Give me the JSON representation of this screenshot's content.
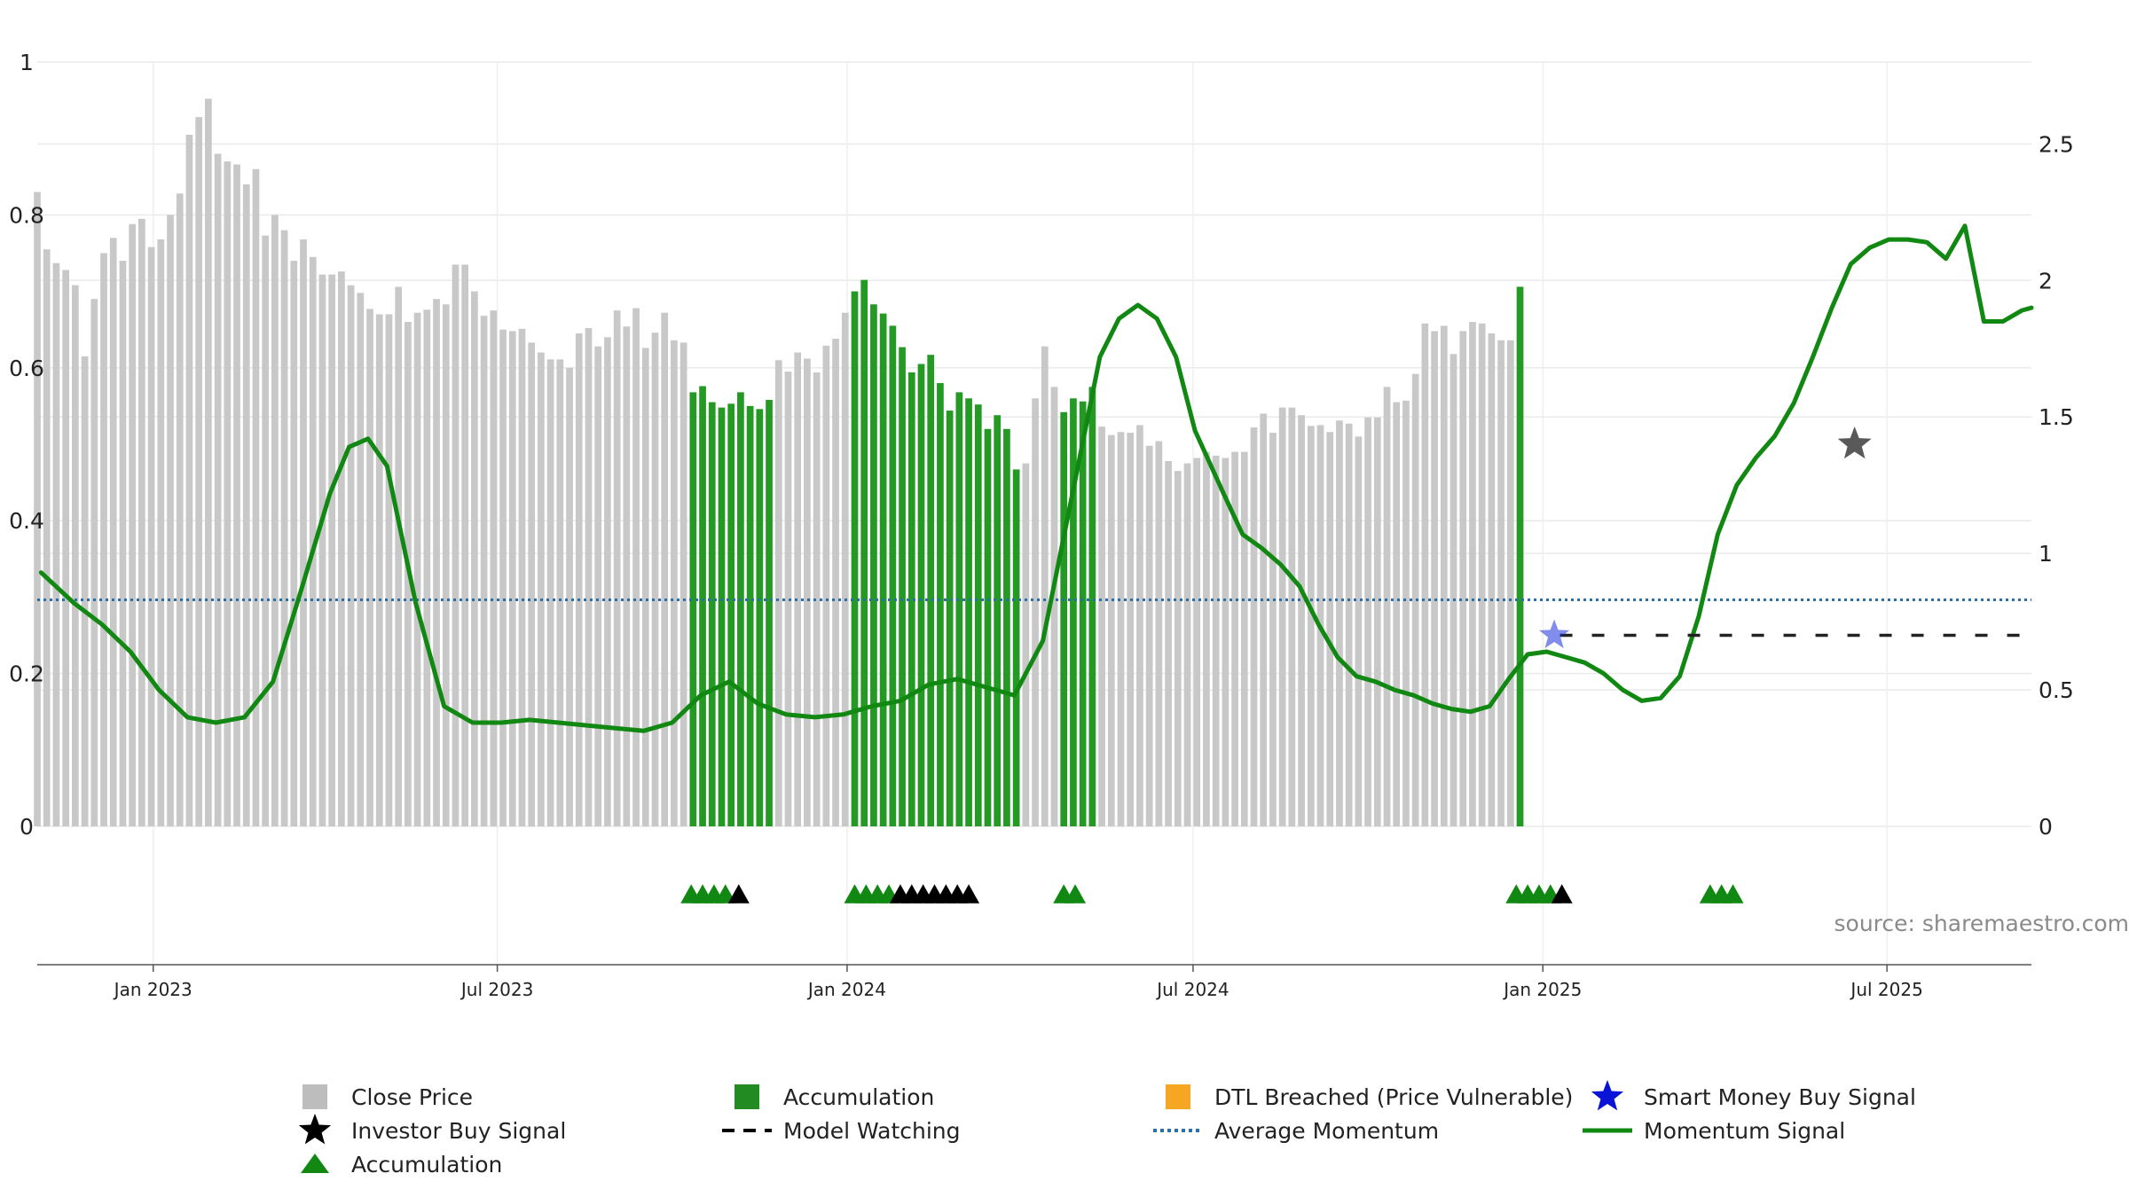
{
  "chart_data": {
    "type": "bar",
    "title": "",
    "xlabel": "",
    "ylabel": "",
    "source": "source: sharemaestro.com",
    "grid": true,
    "left_axis": {
      "ylim": [
        0,
        1
      ],
      "ticks": [
        0,
        0.2,
        0.4,
        0.6,
        0.8,
        1
      ],
      "tick_labels": [
        "0",
        "0.2",
        "0.4",
        "0.6",
        "0.8",
        "1"
      ]
    },
    "right_axis": {
      "ylim": [
        0,
        2.8
      ],
      "ticks": [
        0,
        0.5,
        1,
        1.5,
        2,
        2.5
      ],
      "tick_labels": [
        "0",
        "0.5",
        "1",
        "1.5",
        "2",
        "2.5"
      ]
    },
    "x_axis": {
      "range": [
        "2022-11-01",
        "2025-09-15"
      ],
      "ticks": [
        {
          "date": "2023-01-01",
          "label": "Jan 2023"
        },
        {
          "date": "2023-07-01",
          "label": "Jul 2023"
        },
        {
          "date": "2024-01-01",
          "label": "Jan 2024"
        },
        {
          "date": "2024-07-01",
          "label": "Jul 2024"
        },
        {
          "date": "2025-01-01",
          "label": "Jan 2025"
        },
        {
          "date": "2025-07-01",
          "label": "Jul 2025"
        }
      ]
    },
    "close_price_start_date": "2022-11-01",
    "close_price_interval_days": 5,
    "close_price": [
      0.83,
      0.755,
      0.737,
      0.728,
      0.708,
      0.615,
      0.69,
      0.75,
      0.77,
      0.74,
      0.788,
      0.795,
      0.758,
      0.768,
      0.8,
      0.828,
      0.905,
      0.928,
      0.952,
      0.88,
      0.87,
      0.866,
      0.84,
      0.86,
      0.773,
      0.8,
      0.78,
      0.74,
      0.768,
      0.745,
      0.722,
      0.722,
      0.726,
      0.708,
      0.698,
      0.677,
      0.67,
      0.67,
      0.706,
      0.66,
      0.672,
      0.676,
      0.69,
      0.683,
      0.735,
      0.735,
      0.7,
      0.668,
      0.675,
      0.65,
      0.648,
      0.651,
      0.633,
      0.62,
      0.611,
      0.611,
      0.6,
      0.645,
      0.652,
      0.628,
      0.64,
      0.675,
      0.654,
      0.678,
      0.626,
      0.646,
      0.672,
      0.636,
      0.633,
      0.568,
      0.576,
      0.555,
      0.548,
      0.553,
      0.568,
      0.55,
      0.546,
      0.558,
      0.61,
      0.595,
      0.62,
      0.612,
      0.594,
      0.629,
      0.638,
      0.672,
      0.7,
      0.715,
      0.683,
      0.671,
      0.655,
      0.627,
      0.594,
      0.605,
      0.617,
      0.58,
      0.544,
      0.568,
      0.56,
      0.552,
      0.52,
      0.538,
      0.52,
      0.467,
      0.475,
      0.56,
      0.628,
      0.575,
      0.542,
      0.56,
      0.556,
      0.575,
      0.523,
      0.512,
      0.516,
      0.515,
      0.525,
      0.498,
      0.504,
      0.478,
      0.465,
      0.475,
      0.482,
      0.49,
      0.485,
      0.482,
      0.49,
      0.49,
      0.522,
      0.54,
      0.515,
      0.548,
      0.548,
      0.538,
      0.524,
      0.525,
      0.516,
      0.531,
      0.527,
      0.51,
      0.535,
      0.535,
      0.575,
      0.555,
      0.557,
      0.592,
      0.658,
      0.648,
      0.655,
      0.618,
      0.648,
      0.66,
      0.658,
      0.645,
      0.636,
      0.636,
      0.706
    ],
    "accumulation_bar_ranges": [
      {
        "start": "2023-10-12",
        "end": "2023-11-21"
      },
      {
        "start": "2024-01-05",
        "end": "2024-03-30"
      },
      {
        "start": "2024-04-24",
        "end": "2024-05-09"
      },
      {
        "start": "2024-12-20",
        "end": "2025-01-19"
      },
      {
        "start": "2025-03-30",
        "end": "2025-04-24"
      }
    ],
    "momentum_signal": {
      "x": [
        "2022-11-03",
        "2022-11-20",
        "2022-12-05",
        "2022-12-20",
        "2023-01-04",
        "2023-01-19",
        "2023-02-03",
        "2023-02-18",
        "2023-03-05",
        "2023-03-20",
        "2023-04-04",
        "2023-04-14",
        "2023-04-24",
        "2023-05-04",
        "2023-05-19",
        "2023-06-03",
        "2023-06-18",
        "2023-07-03",
        "2023-07-18",
        "2023-08-02",
        "2023-08-17",
        "2023-09-01",
        "2023-09-16",
        "2023-10-01",
        "2023-10-16",
        "2023-10-31",
        "2023-11-15",
        "2023-11-30",
        "2023-12-15",
        "2023-12-30",
        "2024-01-14",
        "2024-01-29",
        "2024-02-13",
        "2024-02-28",
        "2024-03-14",
        "2024-03-29",
        "2024-04-13",
        "2024-04-28",
        "2024-05-13",
        "2024-05-23",
        "2024-06-02",
        "2024-06-12",
        "2024-06-22",
        "2024-07-02",
        "2024-07-17",
        "2024-07-27",
        "2024-08-06",
        "2024-08-16",
        "2024-08-26",
        "2024-09-05",
        "2024-09-15",
        "2024-09-25",
        "2024-10-05",
        "2024-10-15",
        "2024-10-25",
        "2024-11-04",
        "2024-11-14",
        "2024-11-24",
        "2024-12-04",
        "2024-12-14",
        "2024-12-24",
        "2025-01-03",
        "2025-01-13",
        "2025-01-23",
        "2025-02-02",
        "2025-02-12",
        "2025-02-22",
        "2025-03-04",
        "2025-03-14",
        "2025-03-24",
        "2025-04-03",
        "2025-04-13",
        "2025-04-23",
        "2025-05-03",
        "2025-05-13",
        "2025-05-23",
        "2025-06-02",
        "2025-06-12",
        "2025-06-22",
        "2025-07-02",
        "2025-07-12",
        "2025-07-22",
        "2025-08-01",
        "2025-08-11",
        "2025-08-21",
        "2025-08-26",
        "2025-08-31",
        "2025-09-05",
        "2025-09-10",
        "2025-09-15"
      ],
      "y": [
        0.93,
        0.82,
        0.74,
        0.64,
        0.5,
        0.4,
        0.38,
        0.4,
        0.53,
        0.87,
        1.22,
        1.39,
        1.42,
        1.32,
        0.82,
        0.44,
        0.38,
        0.38,
        0.39,
        0.38,
        0.37,
        0.36,
        0.35,
        0.38,
        0.48,
        0.53,
        0.45,
        0.41,
        0.4,
        0.41,
        0.44,
        0.46,
        0.52,
        0.54,
        0.51,
        0.48,
        0.68,
        1.2,
        1.72,
        1.86,
        1.91,
        1.86,
        1.72,
        1.45,
        1.22,
        1.07,
        1.02,
        0.96,
        0.88,
        0.74,
        0.62,
        0.55,
        0.53,
        0.5,
        0.48,
        0.45,
        0.43,
        0.42,
        0.44,
        0.54,
        0.63,
        0.64,
        0.62,
        0.6,
        0.56,
        0.5,
        0.46,
        0.47,
        0.55,
        0.77,
        1.07,
        1.25,
        1.35,
        1.43,
        1.55,
        1.72,
        1.9,
        2.06,
        2.12,
        2.15,
        2.15,
        2.14,
        2.08,
        2.2,
        1.85,
        1.85,
        1.85,
        1.87,
        1.89,
        1.9
      ]
    },
    "average_momentum": 0.83,
    "model_watching": {
      "start": "2025-01-10",
      "end": "2025-09-10",
      "value": 0.7
    },
    "smart_money_buy_signal": [
      {
        "date": "2025-01-07",
        "value": 0.7
      }
    ],
    "investor_buy_signal_star": [
      {
        "date": "2025-06-14",
        "value": 1.4
      }
    ],
    "marker_triangles": {
      "accumulation": [
        "2023-10-11",
        "2023-10-17",
        "2023-10-23",
        "2023-10-29",
        "2024-01-05",
        "2024-01-11",
        "2024-01-17",
        "2024-01-23",
        "2024-04-24",
        "2024-04-30",
        "2024-12-18",
        "2024-12-24",
        "2024-12-30",
        "2025-01-05",
        "2025-03-30",
        "2025-04-05",
        "2025-04-11"
      ],
      "investor_buy": [
        "2023-11-05",
        "2024-01-29",
        "2024-02-04",
        "2024-02-10",
        "2024-02-16",
        "2024-02-22",
        "2024-02-28",
        "2024-03-05",
        "2025-01-11"
      ]
    },
    "legend": [
      {
        "label": "Close Price",
        "marker": "square",
        "color": "#bdbdbd"
      },
      {
        "label": "Accumulation",
        "marker": "square",
        "color": "#228B22"
      },
      {
        "label": "DTL Breached (Price Vulnerable)",
        "marker": "square",
        "color": "#f5a623"
      },
      {
        "label": "Smart Money Buy Signal",
        "marker": "star",
        "color": "#0a14d6"
      },
      {
        "label": "Investor Buy Signal",
        "marker": "star",
        "color": "#000000"
      },
      {
        "label": "Model Watching",
        "marker": "dash",
        "color": "#000000"
      },
      {
        "label": "Average Momentum",
        "marker": "dotted",
        "color": "#2a6fa8"
      },
      {
        "label": "Momentum Signal",
        "marker": "line",
        "color": "#118811"
      },
      {
        "label": "Accumulation",
        "marker": "triangle",
        "color": "#118811"
      }
    ],
    "colors": {
      "close_price": "#c8c8c8",
      "accumulation_bar": "#249a24",
      "momentum": "#118811",
      "average_momentum": "#2a6fa8",
      "accumulation_triangle": "#118811",
      "investor_triangle": "#000000"
    }
  }
}
